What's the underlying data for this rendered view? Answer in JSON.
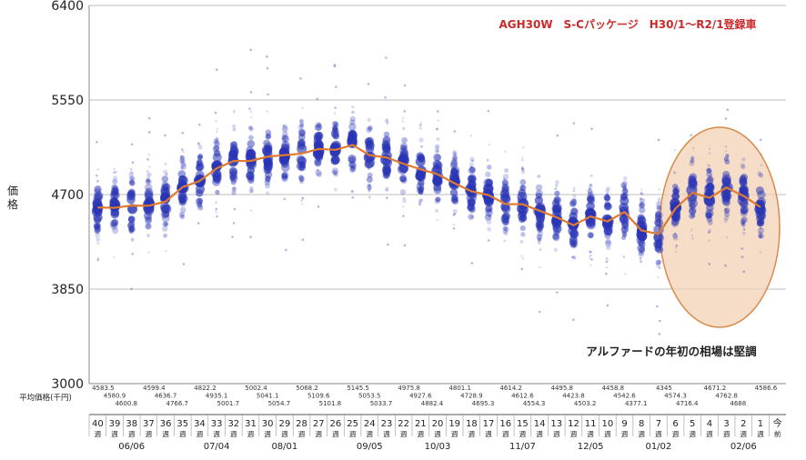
{
  "chart_data": {
    "type": "scatter",
    "title": "AGH30W　S-Cパッケージ　H30/1〜R2/1登録車",
    "annotation": "アルファードの年初の相場は堅調",
    "ylabel": "価格",
    "ylim": [
      3000,
      6400
    ],
    "yticks": [
      3000,
      3850,
      4700,
      5550,
      6400
    ],
    "grid": true,
    "avg_row_label": "平均価格(千円)",
    "week_units": [
      "週",
      "前"
    ],
    "weeks": [
      "40",
      "39",
      "38",
      "37",
      "36",
      "35",
      "34",
      "33",
      "32",
      "31",
      "30",
      "29",
      "28",
      "27",
      "26",
      "25",
      "24",
      "23",
      "22",
      "21",
      "20",
      "19",
      "18",
      "17",
      "16",
      "15",
      "14",
      "13",
      "12",
      "11",
      "10",
      "9",
      "8",
      "7",
      "6",
      "5",
      "4",
      "3",
      "2",
      "1",
      "今"
    ],
    "date_labels": [
      {
        "week": "38",
        "label": "06/06"
      },
      {
        "week": "33",
        "label": "07/04"
      },
      {
        "week": "29",
        "label": "08/01"
      },
      {
        "week": "24",
        "label": "09/05"
      },
      {
        "week": "20",
        "label": "10/03"
      },
      {
        "week": "15",
        "label": "11/07"
      },
      {
        "week": "11",
        "label": "12/05"
      },
      {
        "week": "7",
        "label": "01/02"
      },
      {
        "week": "2",
        "label": "02/06"
      }
    ],
    "avg_label_values": [
      [
        "4583.5",
        "4580.9",
        "4600.8",
        "4599.4",
        "4636.7",
        "4766.7",
        "4822.2",
        "4935.1",
        "5001.7",
        "5002.4",
        "5041.1",
        "5054.7",
        "5068.2",
        "5109.6",
        "5101.8",
        "5145.5",
        "5053.5",
        "5033.7",
        "4975.8",
        "4927.6",
        "4882.4",
        "4801.1",
        "4728.9",
        "4695.3",
        "4614.2",
        "4612.6",
        "4554.3",
        "4495.8",
        "4423.8",
        "4503.2",
        "4458.8",
        "4542.6",
        "4377.1",
        "4345",
        "4574.3",
        "4716.4",
        "4671.2",
        "4762.8",
        "4688",
        "4586.6",
        ""
      ]
    ],
    "series": [
      {
        "name": "平均価格",
        "values": [
          4583.5,
          4580.9,
          4600.8,
          4599.4,
          4636.7,
          4766.7,
          4822.2,
          4935.1,
          5001.7,
          5002.4,
          5041.1,
          5054.7,
          5068.2,
          5109.6,
          5101.8,
          5145.5,
          5053.5,
          5033.7,
          4975.8,
          4927.6,
          4882.4,
          4801.1,
          4728.9,
          4695.3,
          4614.2,
          4612.6,
          4554.3,
          4495.8,
          4423.8,
          4503.2,
          4458.8,
          4542.6,
          4377.1,
          4345,
          4574.3,
          4716.4,
          4671.2,
          4762.8,
          4688,
          4586.6
        ]
      }
    ],
    "colors": {
      "dots": "#2a35b5",
      "avg_line": "#e07a2f",
      "title": "#cc2a2a",
      "highlight_fill": "#f1d2b6",
      "highlight_stroke": "#d98a4a",
      "grid": "#bdbdbd"
    }
  }
}
